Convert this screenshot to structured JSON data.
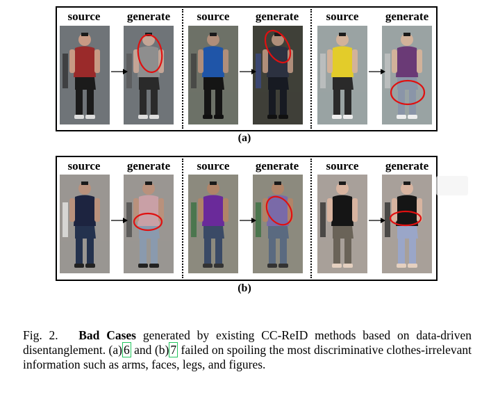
{
  "figure": {
    "panel_a": {
      "label": "(a)",
      "source_label": "source",
      "generate_label": "generate",
      "pairs": [
        {
          "source": {
            "bg": "#6f7478",
            "skin": "#c89a84",
            "top": "#9a2a2a",
            "bottom": "#1b1b1b",
            "shoe": "#dddddd",
            "extra": "#2b2b2b"
          },
          "gen": {
            "bg": "#6f7478",
            "skin": "#c3a596",
            "top": "#8e8e8e",
            "bottom": "#2a2a2a",
            "shoe": "#dddddd",
            "extra": "#555555"
          }
        },
        {
          "source": {
            "bg": "#6d7167",
            "skin": "#b08e7a",
            "top": "#1f55a8",
            "bottom": "#151515",
            "shoe": "#111111",
            "extra": "#3b3b3b"
          },
          "gen": {
            "bg": "#3f4038",
            "skin": "#b08e7a",
            "top": "#2c3140",
            "bottom": "#171a22",
            "shoe": "#111111",
            "extra": "#3a4a8a"
          }
        },
        {
          "source": {
            "bg": "#9aa3a3",
            "skin": "#d2b29a",
            "top": "#e3cc2a",
            "bottom": "#2a2a2a",
            "shoe": "#eeeeee",
            "extra": "#c7c7c7"
          },
          "gen": {
            "bg": "#9aa3a3",
            "skin": "#d2b29a",
            "top": "#6a3a76",
            "bottom": "#8a95a8",
            "shoe": "#eeeeee",
            "extra": "#c7c7c7"
          }
        }
      ]
    },
    "panel_b": {
      "label": "(b)",
      "source_label": "source",
      "generate_label": "generate",
      "pairs": [
        {
          "source": {
            "bg": "#9a9692",
            "skin": "#b9917c",
            "top": "#1d2440",
            "bottom": "#24324e",
            "shoe": "#222222",
            "extra": "#f0f0f0"
          },
          "gen": {
            "bg": "#9a9692",
            "skin": "#b9917c",
            "top": "#c9a0a6",
            "bottom": "#8a9aae",
            "shoe": "#222222",
            "extra": "#444444"
          }
        },
        {
          "source": {
            "bg": "#8c8a7e",
            "skin": "#b08468",
            "top": "#6a2a9a",
            "bottom": "#3a4a66",
            "shoe": "#333333",
            "extra": "#2f6e3a"
          },
          "gen": {
            "bg": "#8c8a7e",
            "skin": "#b08468",
            "top": "#7a6aa8",
            "bottom": "#5a6a80",
            "shoe": "#333333",
            "extra": "#2f6e3a"
          }
        },
        {
          "source": {
            "bg": "#a8a09a",
            "skin": "#d8b4a0",
            "top": "#151515",
            "bottom": "#6a6358",
            "shoe": "#e5d0c0",
            "extra": "#222222"
          },
          "gen": {
            "bg": "#a8a09a",
            "skin": "#d8b4a0",
            "top": "#151515",
            "bottom": "#9aa6c8",
            "shoe": "#e5d0c0",
            "extra": "#222222"
          }
        }
      ]
    }
  },
  "caption": {
    "prefix": "Fig. 2.",
    "bold": "Bad Cases",
    "part1": " generated by existing CC-ReID methods based on data-driven disentanglement. (a)",
    "ref1": "6",
    "part2": " and (b)",
    "ref2": "7",
    "part3": " failed on spoiling the most discriminative clothes-irrelevant information such as arms, faces, legs, and figures."
  }
}
